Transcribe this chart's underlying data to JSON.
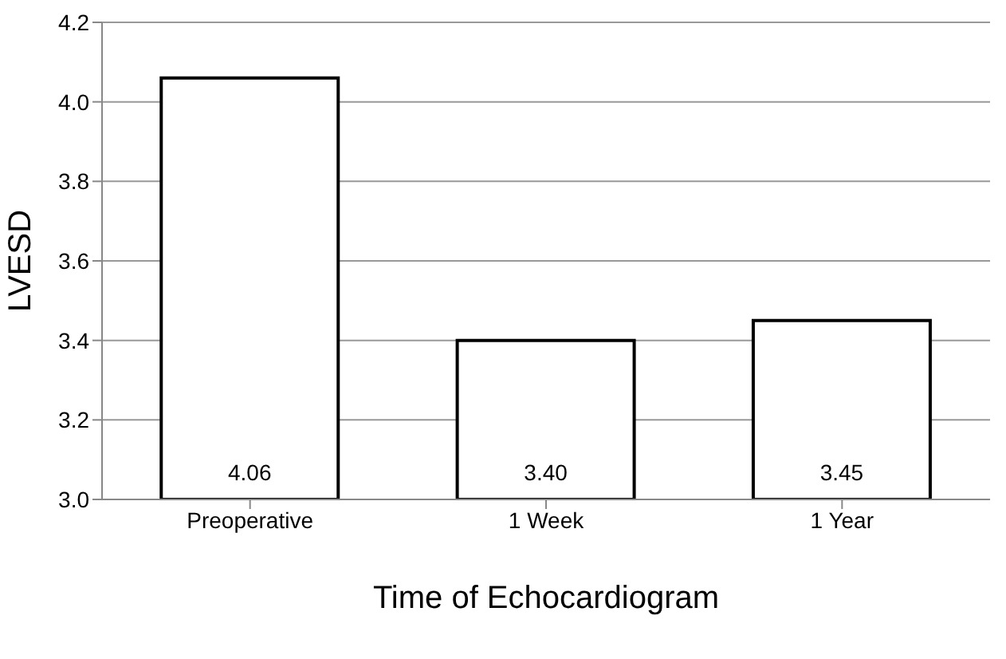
{
  "chart_data": {
    "type": "bar",
    "xlabel": "Time of Echocardiogram",
    "ylabel": "LVESD",
    "categories": [
      "Preoperative",
      "1 Week",
      "1 Year"
    ],
    "values": [
      4.06,
      3.4,
      3.45
    ],
    "value_labels": [
      "4.06",
      "3.40",
      "3.45"
    ],
    "color": "#ffffff",
    "ylim": [
      3.0,
      4.2
    ],
    "yticks": [
      {
        "value": 3.0,
        "label": "3.0"
      },
      {
        "value": 3.2,
        "label": "3.2"
      },
      {
        "value": 3.4,
        "label": "3.4"
      },
      {
        "value": 3.6,
        "label": "3.6"
      },
      {
        "value": 3.8,
        "label": "3.8"
      },
      {
        "value": 4.0,
        "label": "4.0"
      },
      {
        "value": 4.2,
        "label": "4.2"
      }
    ],
    "grid": "y"
  }
}
